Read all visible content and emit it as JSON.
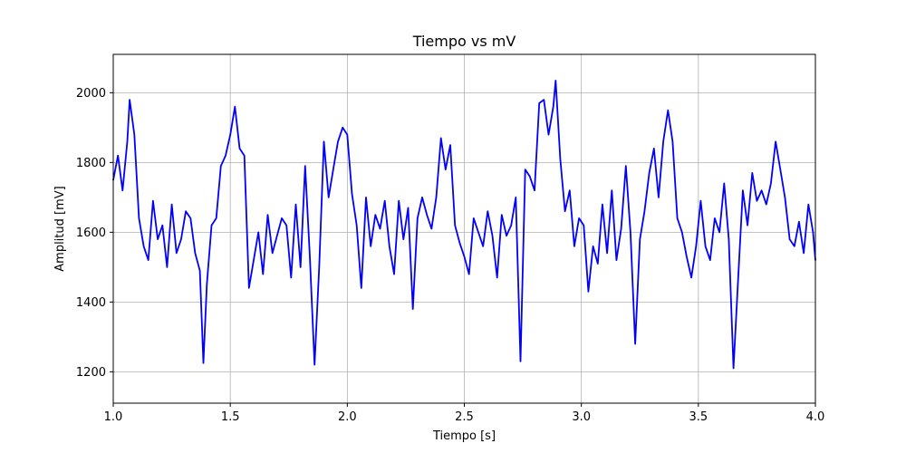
{
  "chart_data": {
    "type": "line",
    "title": "Tiempo vs mV",
    "xlabel": "Tiempo [s]",
    "ylabel": "Amplitud [mV]",
    "xlim": [
      1.0,
      4.0
    ],
    "ylim": [
      1110,
      2110
    ],
    "xticks": [
      1.0,
      1.5,
      2.0,
      2.5,
      3.0,
      3.5,
      4.0
    ],
    "xtick_labels": [
      "1.0",
      "1.5",
      "2.0",
      "2.5",
      "3.0",
      "3.5",
      "4.0"
    ],
    "yticks": [
      1200,
      1400,
      1600,
      1800,
      2000
    ],
    "ytick_labels": [
      "1200",
      "1400",
      "1600",
      "1800",
      "2000"
    ],
    "grid": true,
    "series": [
      {
        "color": "#0000ff",
        "x": [
          1.0,
          1.02,
          1.04,
          1.06,
          1.07,
          1.09,
          1.11,
          1.13,
          1.15,
          1.17,
          1.19,
          1.21,
          1.23,
          1.25,
          1.27,
          1.29,
          1.31,
          1.33,
          1.35,
          1.37,
          1.385,
          1.4,
          1.42,
          1.44,
          1.46,
          1.48,
          1.5,
          1.52,
          1.54,
          1.56,
          1.58,
          1.6,
          1.62,
          1.64,
          1.66,
          1.68,
          1.7,
          1.72,
          1.74,
          1.76,
          1.78,
          1.8,
          1.82,
          1.84,
          1.86,
          1.88,
          1.9,
          1.92,
          1.94,
          1.96,
          1.98,
          2.0,
          2.02,
          2.04,
          2.06,
          2.08,
          2.1,
          2.12,
          2.14,
          2.16,
          2.18,
          2.2,
          2.22,
          2.24,
          2.26,
          2.28,
          2.3,
          2.32,
          2.34,
          2.36,
          2.38,
          2.4,
          2.42,
          2.44,
          2.46,
          2.48,
          2.5,
          2.52,
          2.54,
          2.56,
          2.58,
          2.6,
          2.62,
          2.64,
          2.66,
          2.68,
          2.7,
          2.72,
          2.74,
          2.76,
          2.78,
          2.8,
          2.82,
          2.84,
          2.86,
          2.88,
          2.89,
          2.91,
          2.93,
          2.95,
          2.97,
          2.99,
          3.01,
          3.03,
          3.05,
          3.07,
          3.09,
          3.11,
          3.13,
          3.15,
          3.17,
          3.19,
          3.21,
          3.23,
          3.25,
          3.27,
          3.29,
          3.31,
          3.33,
          3.35,
          3.37,
          3.39,
          3.41,
          3.43,
          3.45,
          3.47,
          3.49,
          3.51,
          3.53,
          3.55,
          3.57,
          3.59,
          3.61,
          3.63,
          3.65,
          3.67,
          3.69,
          3.71,
          3.73,
          3.75,
          3.77,
          3.79,
          3.81,
          3.83,
          3.85,
          3.87,
          3.89,
          3.91,
          3.93,
          3.95,
          3.97,
          3.99,
          4.0
        ],
        "y": [
          1750,
          1820,
          1720,
          1860,
          1980,
          1880,
          1640,
          1560,
          1520,
          1690,
          1580,
          1620,
          1500,
          1680,
          1540,
          1580,
          1660,
          1640,
          1540,
          1490,
          1225,
          1450,
          1620,
          1640,
          1790,
          1820,
          1880,
          1960,
          1840,
          1820,
          1440,
          1520,
          1600,
          1480,
          1650,
          1540,
          1590,
          1640,
          1620,
          1470,
          1680,
          1500,
          1790,
          1530,
          1220,
          1500,
          1860,
          1700,
          1780,
          1860,
          1900,
          1880,
          1710,
          1620,
          1440,
          1700,
          1560,
          1650,
          1610,
          1690,
          1560,
          1480,
          1690,
          1580,
          1670,
          1380,
          1640,
          1700,
          1650,
          1610,
          1700,
          1870,
          1780,
          1850,
          1620,
          1570,
          1530,
          1480,
          1640,
          1600,
          1560,
          1660,
          1590,
          1470,
          1650,
          1590,
          1620,
          1700,
          1230,
          1780,
          1760,
          1720,
          1970,
          1980,
          1880,
          1960,
          2035,
          1810,
          1660,
          1720,
          1560,
          1640,
          1620,
          1430,
          1560,
          1510,
          1680,
          1540,
          1720,
          1520,
          1610,
          1790,
          1600,
          1280,
          1580,
          1660,
          1770,
          1840,
          1700,
          1860,
          1950,
          1860,
          1640,
          1600,
          1530,
          1470,
          1560,
          1690,
          1560,
          1520,
          1640,
          1600,
          1740,
          1580,
          1210,
          1470,
          1720,
          1620,
          1770,
          1690,
          1720,
          1680,
          1740,
          1860,
          1780,
          1700,
          1580,
          1560,
          1630,
          1540,
          1680,
          1600,
          1520
        ]
      }
    ]
  }
}
